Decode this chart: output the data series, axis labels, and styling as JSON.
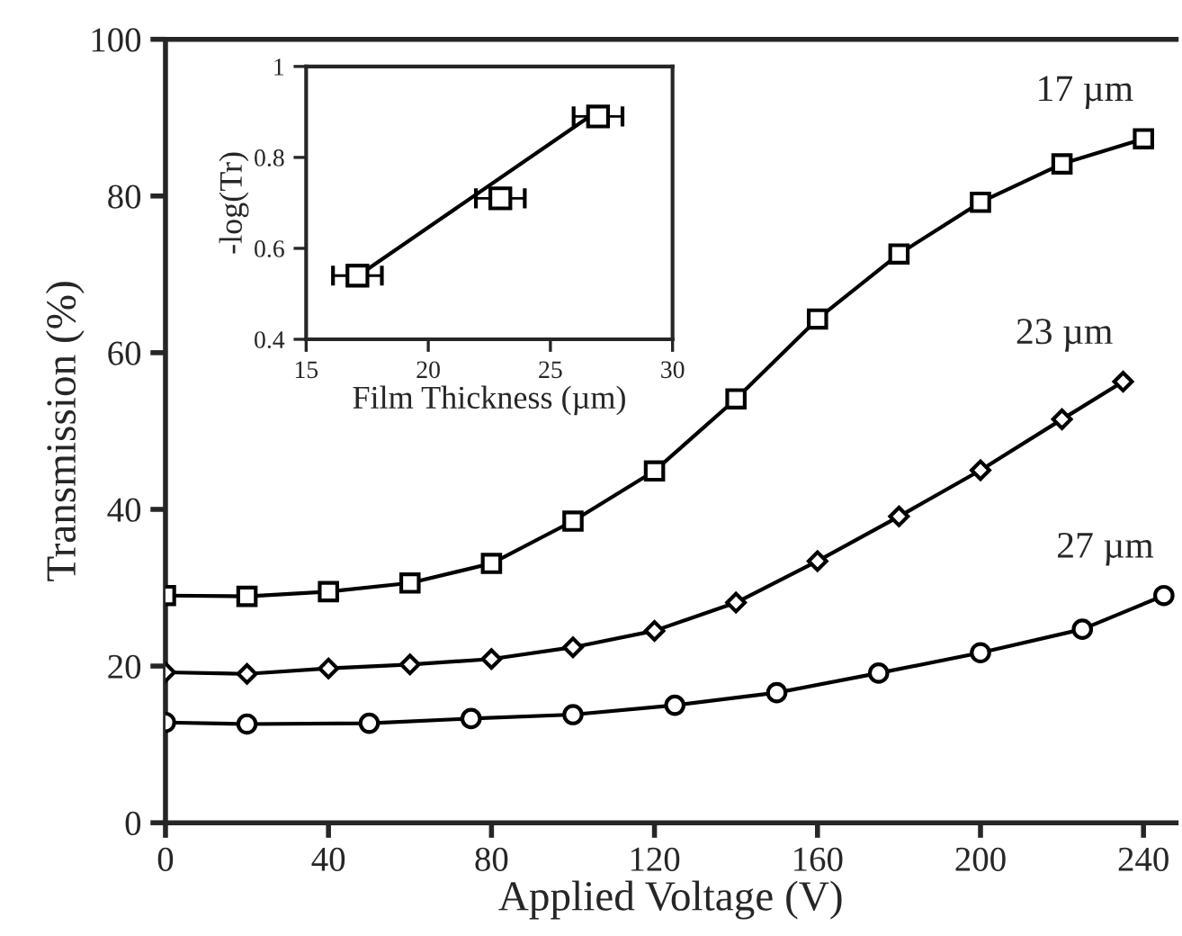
{
  "chart_data": [
    {
      "type": "line",
      "xlabel": "Applied Voltage (V)",
      "ylabel": "Transmission (%)",
      "xlim": [
        0,
        248
      ],
      "ylim": [
        0,
        100
      ],
      "xticks": [
        0,
        40,
        80,
        120,
        160,
        200,
        240
      ],
      "yticks": [
        0,
        20,
        40,
        60,
        80,
        100
      ],
      "grid": false,
      "legend": false,
      "line_style": "solid",
      "series": [
        {
          "name": "17 µm",
          "color": "#000000",
          "marker": "square",
          "x": [
            0,
            20,
            40,
            60,
            80,
            100,
            120,
            140,
            160,
            180,
            200,
            220,
            240
          ],
          "values": [
            29.0,
            28.9,
            29.5,
            30.6,
            33.1,
            38.5,
            44.9,
            54.1,
            64.3,
            72.6,
            79.2,
            84.1,
            87.3
          ]
        },
        {
          "name": "23 µm",
          "color": "#000000",
          "marker": "diamond",
          "x": [
            0,
            20,
            40,
            60,
            80,
            100,
            120,
            140,
            160,
            180,
            200,
            220,
            235
          ],
          "values": [
            19.2,
            19.0,
            19.7,
            20.2,
            20.9,
            22.4,
            24.5,
            28.1,
            33.4,
            39.1,
            45.0,
            51.5,
            56.3
          ]
        },
        {
          "name": "27 µm",
          "color": "#000000",
          "marker": "circle",
          "x": [
            0,
            20,
            50,
            75,
            100,
            125,
            150,
            175,
            200,
            225,
            245
          ],
          "values": [
            12.8,
            12.6,
            12.7,
            13.3,
            13.8,
            15.0,
            16.6,
            19.1,
            21.7,
            24.7,
            29.0
          ]
        }
      ]
    },
    {
      "type": "scatter",
      "xlabel": "Film Thickness (µm)",
      "ylabel": "-log(Tr)",
      "xlim": [
        15,
        30
      ],
      "ylim": [
        0.4,
        1
      ],
      "xticks": [
        15,
        20,
        25,
        30
      ],
      "yticks": [
        0.4,
        0.6,
        0.8,
        1
      ],
      "grid": false,
      "legend": false,
      "series": [
        {
          "type": "scatter",
          "color": "#000000",
          "marker": "square",
          "x": [
            17.1,
            22.95,
            26.95
          ],
          "values": [
            0.54,
            0.71,
            0.89
          ],
          "xerrors": [
            1,
            1,
            1
          ]
        },
        {
          "type": "line",
          "color": "#000000",
          "marker": "none",
          "x": [
            17.4,
            26.6
          ],
          "values": [
            0.55,
            0.89
          ]
        }
      ]
    }
  ]
}
